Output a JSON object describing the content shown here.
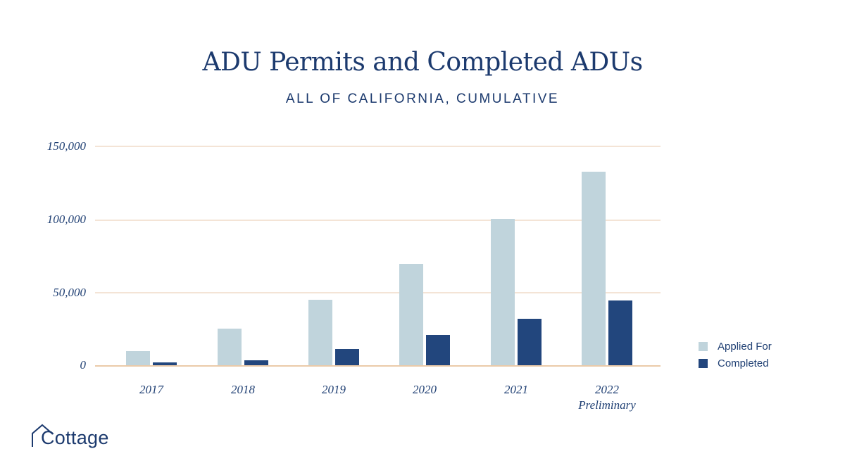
{
  "title": "ADU Permits and Completed ADUs",
  "subtitle": "ALL OF CALIFORNIA, CUMULATIVE",
  "brand": {
    "name": "Cottage",
    "logo_icon": "house-roof-icon"
  },
  "colors": {
    "applied": "#c0d4dc",
    "completed": "#22467d",
    "text": "#1c3a6e",
    "grid": "#f4e4d6",
    "baseline": "#ebcaa9"
  },
  "y_axis": {
    "ticks": [
      "150,000",
      "100,000",
      "50,000",
      "0"
    ]
  },
  "x_axis": {
    "ticks": [
      {
        "line1": "2017",
        "line2": ""
      },
      {
        "line1": "2018",
        "line2": ""
      },
      {
        "line1": "2019",
        "line2": ""
      },
      {
        "line1": "2020",
        "line2": ""
      },
      {
        "line1": "2021",
        "line2": ""
      },
      {
        "line1": "2022",
        "line2": "Preliminary"
      }
    ]
  },
  "legend": {
    "items": [
      {
        "label": "Applied For"
      },
      {
        "label": "Completed"
      }
    ]
  },
  "chart_data": {
    "type": "bar",
    "title": "ADU Permits and Completed ADUs",
    "subtitle": "ALL OF CALIFORNIA, CUMULATIVE",
    "categories": [
      "2017",
      "2018",
      "2019",
      "2020",
      "2021",
      "2022 Preliminary"
    ],
    "series": [
      {
        "name": "Applied For",
        "color": "#c0d4dc",
        "values": [
          10000,
          25500,
          45000,
          69500,
          100500,
          132500
        ]
      },
      {
        "name": "Completed",
        "color": "#22467d",
        "values": [
          2500,
          3800,
          11500,
          21000,
          32000,
          44500
        ]
      }
    ],
    "xlabel": "",
    "ylabel": "",
    "ylim": [
      0,
      150000
    ],
    "yticks": [
      0,
      50000,
      100000,
      150000
    ],
    "grid": true,
    "legend_position": "right"
  }
}
